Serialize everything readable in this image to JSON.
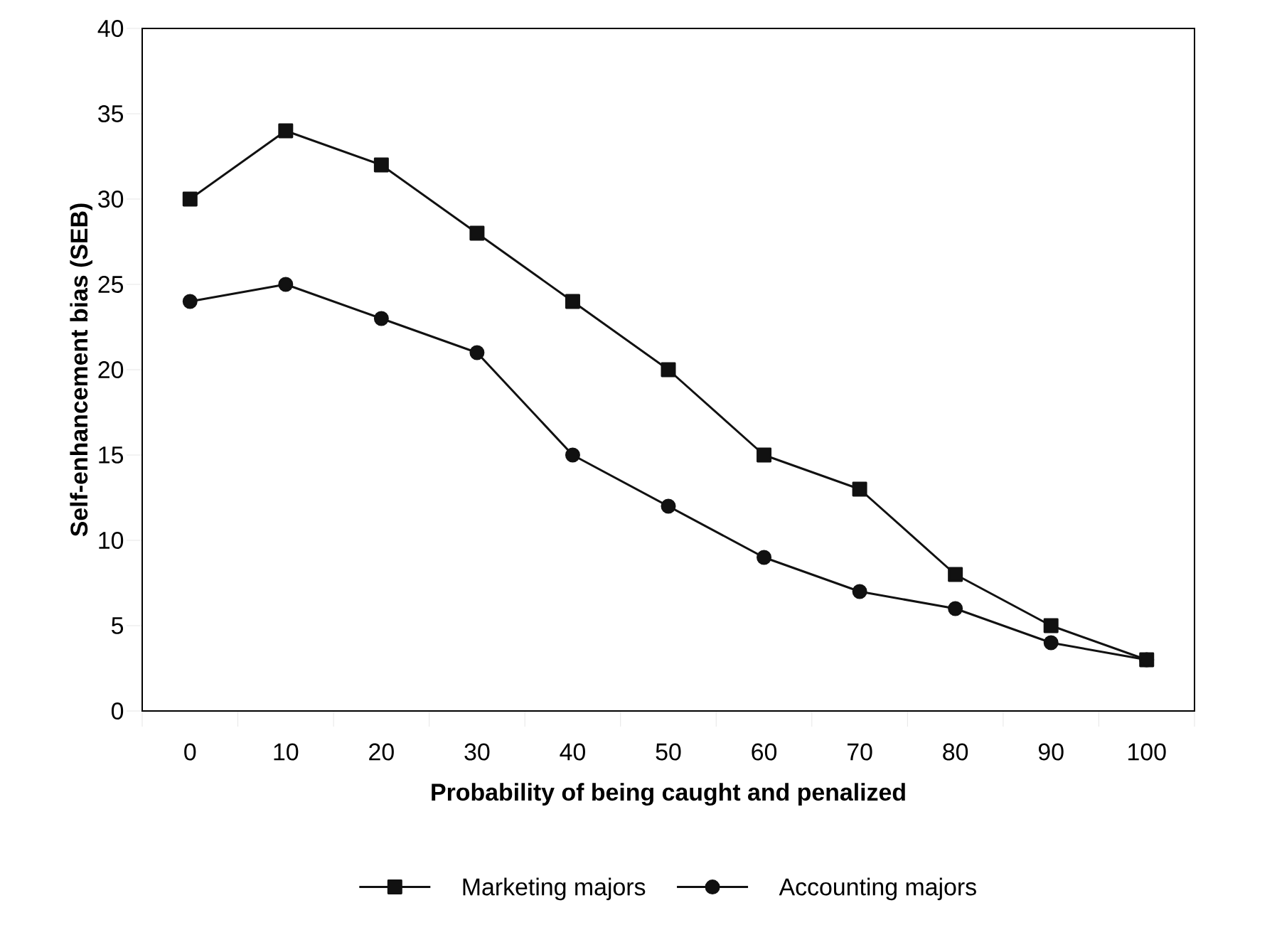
{
  "chart_data": {
    "type": "line",
    "xlabel": "Probability of being caught and penalized",
    "ylabel": "Self-enhancement bias (SEB)",
    "categories": [
      "0",
      "10",
      "20",
      "30",
      "40",
      "50",
      "60",
      "70",
      "80",
      "90",
      "100"
    ],
    "series": [
      {
        "name": "Marketing majors",
        "color": "#111111",
        "marker": "square",
        "values": [
          30,
          34,
          32,
          28,
          24,
          20,
          15,
          13,
          8,
          5,
          3
        ]
      },
      {
        "name": "Accounting majors",
        "color": "#111111",
        "marker": "circle",
        "values": [
          24,
          25,
          23,
          21,
          15,
          12,
          9,
          7,
          6,
          4,
          3
        ]
      }
    ],
    "ylim": [
      0,
      40
    ],
    "yticks": [
      0,
      5,
      10,
      15,
      20,
      25,
      30,
      35,
      40
    ],
    "legend": "bottom",
    "line_style": "solid"
  }
}
